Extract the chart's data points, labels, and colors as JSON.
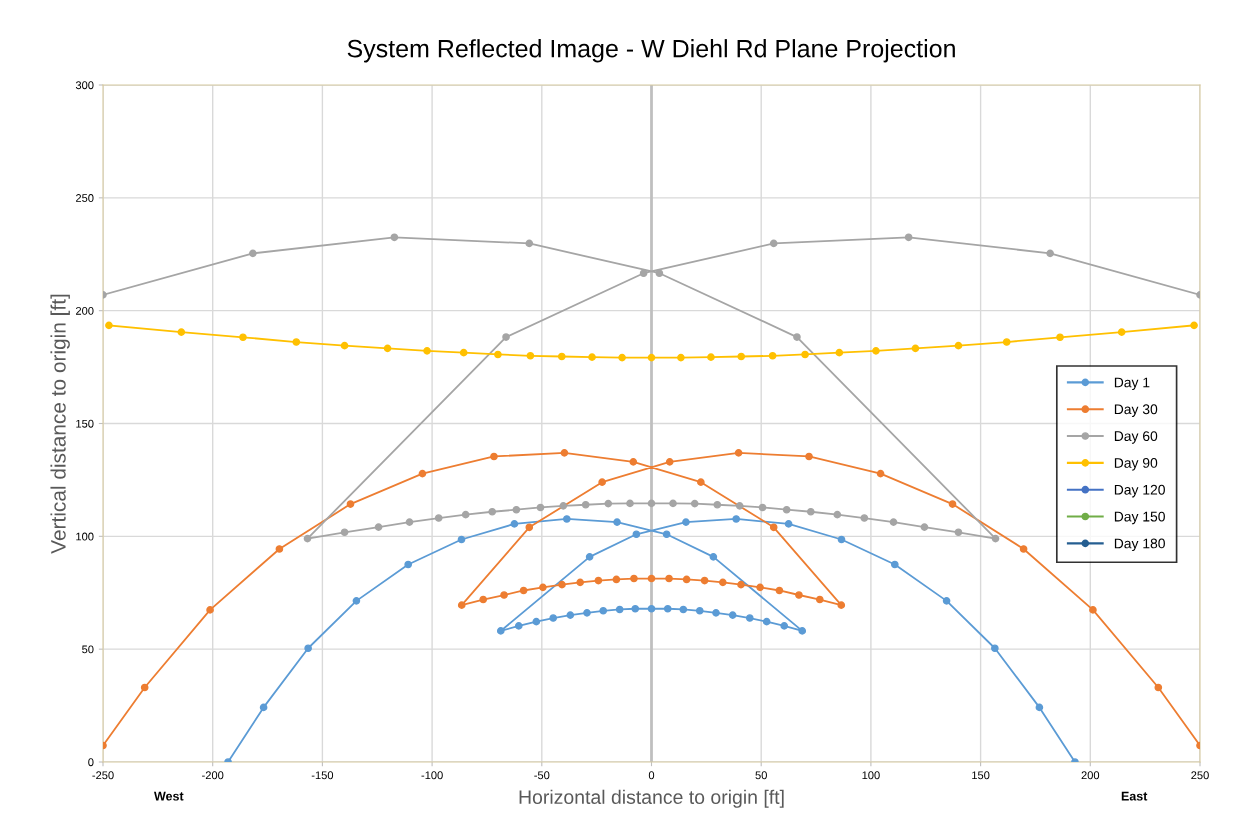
{
  "chart_data": {
    "type": "line",
    "title": "System Reflected Image - W Diehl Rd Plane Projection",
    "xlabel": "Horizontal distance to origin [ft]",
    "ylabel": "Vertical distance to origin [ft]",
    "annotations": [
      "West",
      "East"
    ],
    "xlim": [
      -250,
      250
    ],
    "xticks": [
      -250,
      -200,
      -150,
      -100,
      -50,
      0,
      50,
      100,
      150,
      200,
      250
    ],
    "ylim": [
      0,
      300
    ],
    "yticks": [
      0,
      50,
      100,
      150,
      200,
      250,
      300
    ],
    "grid": true,
    "legend": "right",
    "marker": "circle",
    "line_style": "solid",
    "ref_lines": [
      {
        "axis": "x",
        "value": 0,
        "color": "#bfbfbf"
      }
    ],
    "series": [
      {
        "name": "Day 1",
        "color": "#5b9bd5",
        "x": [
          -193,
          -176.8,
          -156.5,
          -134.5,
          -110.9,
          -86.6,
          -62.5,
          -38.6,
          -15.7,
          6.9,
          28.2,
          68.7,
          60.5,
          52.5,
          44.8,
          37,
          29.4,
          22,
          14.5,
          7.4,
          0,
          -7.4,
          -14.5,
          -22,
          -29.4,
          -37,
          -44.8,
          -52.5,
          -60.5,
          -68.7,
          -28.2,
          -6.9,
          15.7,
          38.6,
          62.5,
          86.6,
          110.9,
          134.5,
          156.5,
          176.8,
          193
        ],
        "values": [
          0,
          24.2,
          50.4,
          71.4,
          87.5,
          98.6,
          105.5,
          107.7,
          106.3,
          100.9,
          90.9,
          58.1,
          60.3,
          62.2,
          63.8,
          65.1,
          66.1,
          67,
          67.6,
          67.9,
          67.9,
          67.9,
          67.6,
          67,
          66.1,
          65.1,
          63.8,
          62.2,
          60.3,
          58.1,
          90.9,
          100.9,
          106.3,
          107.7,
          105.5,
          98.6,
          87.5,
          71.4,
          50.4,
          24.2,
          0
        ]
      },
      {
        "name": "Day 30",
        "color": "#ed7d31",
        "x": [
          -250,
          -231,
          -201.2,
          -169.6,
          -137.2,
          -104.4,
          -71.8,
          -39.7,
          -8.3,
          22.5,
          55.7,
          86.5,
          76.7,
          67.2,
          58.3,
          49.5,
          40.8,
          32.5,
          24.2,
          16,
          8,
          0,
          -8,
          -16,
          -24.2,
          -32.5,
          -40.8,
          -49.5,
          -58.3,
          -67.2,
          -76.7,
          -86.5,
          -55.7,
          -22.5,
          8.3,
          39.7,
          71.8,
          104.4,
          137.2,
          169.6,
          201.2,
          231,
          250
        ],
        "values": [
          7.3,
          33,
          67.4,
          94.4,
          114.3,
          127.8,
          135.4,
          137,
          133,
          124,
          104,
          69.5,
          72,
          74,
          76,
          77.4,
          78.6,
          79.6,
          80.4,
          80.9,
          81.3,
          81.3,
          81.3,
          80.9,
          80.4,
          79.6,
          78.6,
          77.4,
          76,
          74,
          72,
          69.5,
          104,
          124,
          133,
          137,
          135.4,
          127.8,
          114.3,
          94.4,
          67.4,
          33,
          7.3
        ]
      },
      {
        "name": "Day 60",
        "color": "#a5a5a5",
        "x": [
          -250,
          -181.7,
          -117.2,
          -55.7,
          3.6,
          66.3,
          156.8,
          139.9,
          124.4,
          110.3,
          97,
          84.7,
          72.6,
          61.6,
          50.6,
          40.2,
          30,
          19.7,
          9.8,
          0,
          -9.8,
          -19.7,
          -30,
          -40.2,
          -50.6,
          -61.6,
          -72.6,
          -84.7,
          -97,
          -110.3,
          -124.4,
          -139.9,
          -156.8,
          -66.3,
          -3.6,
          55.7,
          117.2,
          181.7,
          250
        ],
        "values": [
          207,
          225.4,
          232.5,
          229.8,
          216.6,
          188.3,
          99,
          101.8,
          104.1,
          106.3,
          108.1,
          109.6,
          110.9,
          111.8,
          112.8,
          113.5,
          114,
          114.5,
          114.6,
          114.6,
          114.6,
          114.5,
          114,
          113.5,
          112.8,
          111.8,
          110.9,
          109.6,
          108.1,
          106.3,
          104.1,
          101.8,
          99,
          188.3,
          216.6,
          229.8,
          232.5,
          225.4,
          207
        ]
      },
      {
        "name": "Day 90",
        "color": "#ffc000",
        "x": [
          -247.3,
          -214.3,
          -186.2,
          -161.9,
          -139.9,
          -120.3,
          -102.3,
          -85.6,
          -70,
          -55.2,
          -40.9,
          -27.1,
          -13.4,
          0,
          13.4,
          27.1,
          40.9,
          55.2,
          70,
          85.6,
          102.3,
          120.3,
          139.9,
          161.9,
          186.2,
          214.3,
          247.3
        ],
        "values": [
          193.5,
          190.5,
          188.2,
          186.1,
          184.5,
          183.3,
          182.2,
          181.4,
          180.6,
          180,
          179.7,
          179.4,
          179.2,
          179.2,
          179.2,
          179.4,
          179.7,
          180,
          180.6,
          181.4,
          182.2,
          183.3,
          184.5,
          186.1,
          188.2,
          190.5,
          193.5
        ]
      },
      {
        "name": "Day 120",
        "color": "#4472c4"
      },
      {
        "name": "Day 150",
        "color": "#70ad47"
      },
      {
        "name": "Day 180",
        "color": "#255e91"
      }
    ]
  }
}
